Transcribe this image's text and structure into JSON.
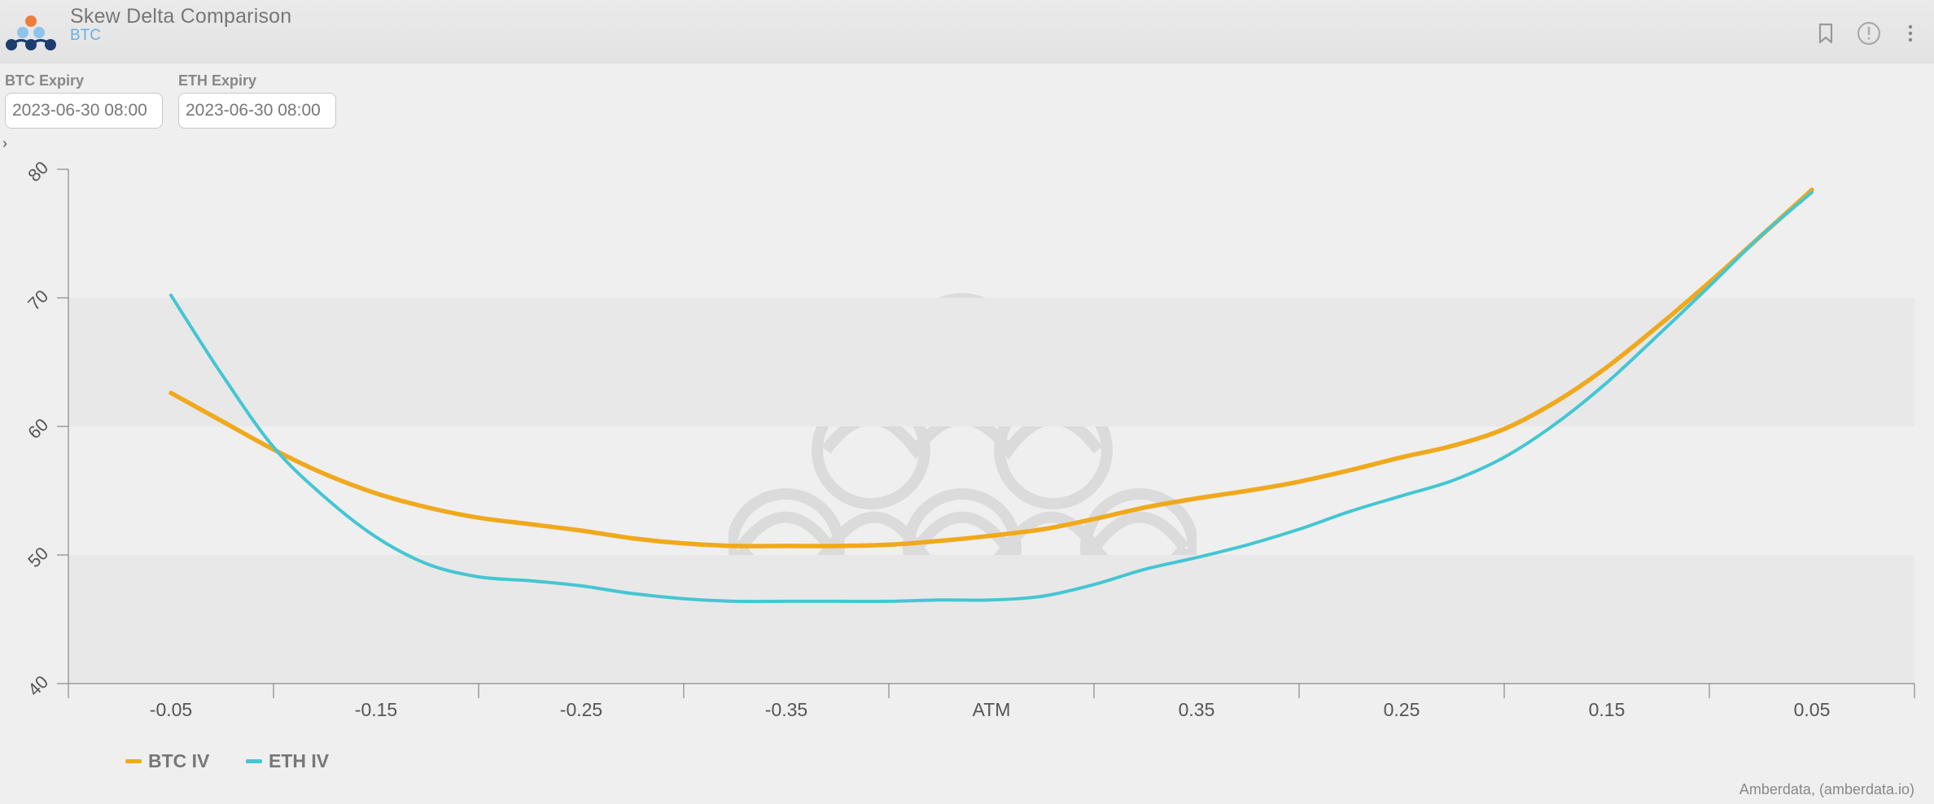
{
  "header": {
    "title": "Skew Delta Comparison",
    "subtitle": "BTC"
  },
  "icons": {
    "logo": "amberdata-logo",
    "bookmark": "bookmark-icon",
    "info": "info-icon",
    "menu": "more-vertical-icon"
  },
  "filters": {
    "btc_label": "BTC Expiry",
    "btc_value": "2023-06-30 08:00",
    "eth_label": "ETH Expiry",
    "eth_value": "2023-06-30 08:00",
    "expander": "›"
  },
  "credit": "Amberdata, (amberdata.io)",
  "chart_data": {
    "type": "line",
    "title": "",
    "xlabel": "",
    "ylabel": "",
    "categories": [
      "-0.05",
      "-0.15",
      "-0.25",
      "-0.35",
      "ATM",
      "0.35",
      "0.25",
      "0.15",
      "0.05"
    ],
    "x_range": [
      -0.5,
      8.5
    ],
    "ylim": [
      40,
      80
    ],
    "yticks": [
      40,
      50,
      60,
      70,
      80
    ],
    "grid": "alternating horizontal bands",
    "legend": "bottom-left",
    "series": [
      {
        "name": "BTC IV",
        "color": "#f0a91d",
        "x": [
          0,
          0.25,
          0.5,
          0.75,
          1,
          1.25,
          1.5,
          1.75,
          2,
          2.25,
          2.5,
          2.75,
          3,
          3.25,
          3.5,
          3.75,
          4,
          4.25,
          4.5,
          4.75,
          5,
          5.25,
          5.5,
          5.75,
          6,
          6.25,
          6.5,
          6.75,
          7,
          7.25,
          7.5,
          7.75,
          8
        ],
        "values": [
          62.6,
          60.4,
          58.2,
          56.3,
          54.8,
          53.7,
          52.9,
          52.4,
          51.9,
          51.3,
          50.9,
          50.7,
          50.7,
          50.7,
          50.8,
          51.1,
          51.5,
          52.0,
          52.8,
          53.7,
          54.4,
          55.0,
          55.7,
          56.6,
          57.6,
          58.5,
          59.8,
          61.9,
          64.6,
          67.8,
          71.2,
          74.8,
          78.4
        ]
      },
      {
        "name": "ETH IV",
        "color": "#44c6d3",
        "x": [
          0,
          0.25,
          0.5,
          0.75,
          1,
          1.25,
          1.5,
          1.75,
          2,
          2.25,
          2.5,
          2.75,
          3,
          3.25,
          3.5,
          3.75,
          4,
          4.25,
          4.5,
          4.75,
          5,
          5.25,
          5.5,
          5.75,
          6,
          6.25,
          6.5,
          6.75,
          7,
          7.25,
          7.5,
          7.75,
          8
        ],
        "values": [
          70.2,
          64.0,
          58.4,
          54.5,
          51.4,
          49.3,
          48.3,
          48.0,
          47.6,
          47.0,
          46.6,
          46.4,
          46.4,
          46.4,
          46.4,
          46.5,
          46.5,
          46.8,
          47.7,
          48.9,
          49.8,
          50.8,
          52.0,
          53.4,
          54.6,
          55.8,
          57.6,
          60.2,
          63.4,
          67.1,
          70.9,
          74.8,
          78.2
        ]
      }
    ]
  }
}
